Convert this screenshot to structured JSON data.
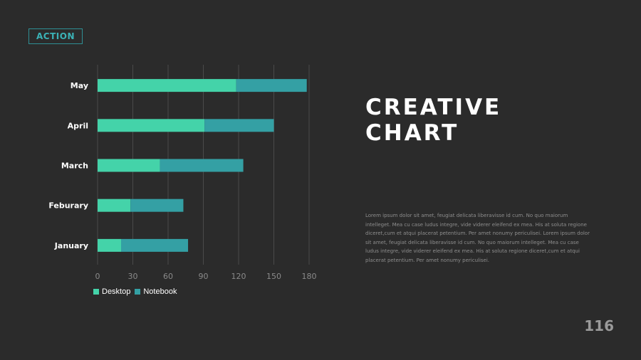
{
  "logo": {
    "text": "ACTION"
  },
  "title": {
    "line1": "CREATIVE",
    "line2": "CHART"
  },
  "body_text": "Lorem ipsum dolor sit amet, feugiat delicata liberavisse id cum. No quo maiorum intelleget. Mea cu case ludus integre, vide viderer eleifend ex mea. His at soluta regione diceret,cum et atqui placerat petentium. Per amet nonumy periculisei. Lorem ipsum dolor sit amet, feugiat delicata liberavisse id cum. No quo maiorum intelleget. Mea cu case ludus integre, vide viderer eleifend ex mea. His at soluta regione diceret,cum et atqui placerat petentium. Per amet nonumy periculisei.",
  "page_number": "116",
  "colors": {
    "desktop": "#44d3a9",
    "notebook": "#34a0a4",
    "grid": "#4a4a4a",
    "axis_text": "#8a8a8a"
  },
  "chart_data": {
    "type": "bar",
    "orientation": "horizontal",
    "stacked": true,
    "categories": [
      "May",
      "April",
      "March",
      "Feburary",
      "January"
    ],
    "series": [
      {
        "name": "Desktop",
        "values": [
          118,
          91,
          53,
          28,
          20
        ]
      },
      {
        "name": "Notebook",
        "values": [
          60,
          59,
          71,
          45,
          57
        ]
      }
    ],
    "xticks": [
      "0",
      "30",
      "60",
      "90",
      "120",
      "150",
      "180"
    ],
    "xlim": [
      0,
      180
    ],
    "grid": true,
    "legend": "bottom-left"
  }
}
